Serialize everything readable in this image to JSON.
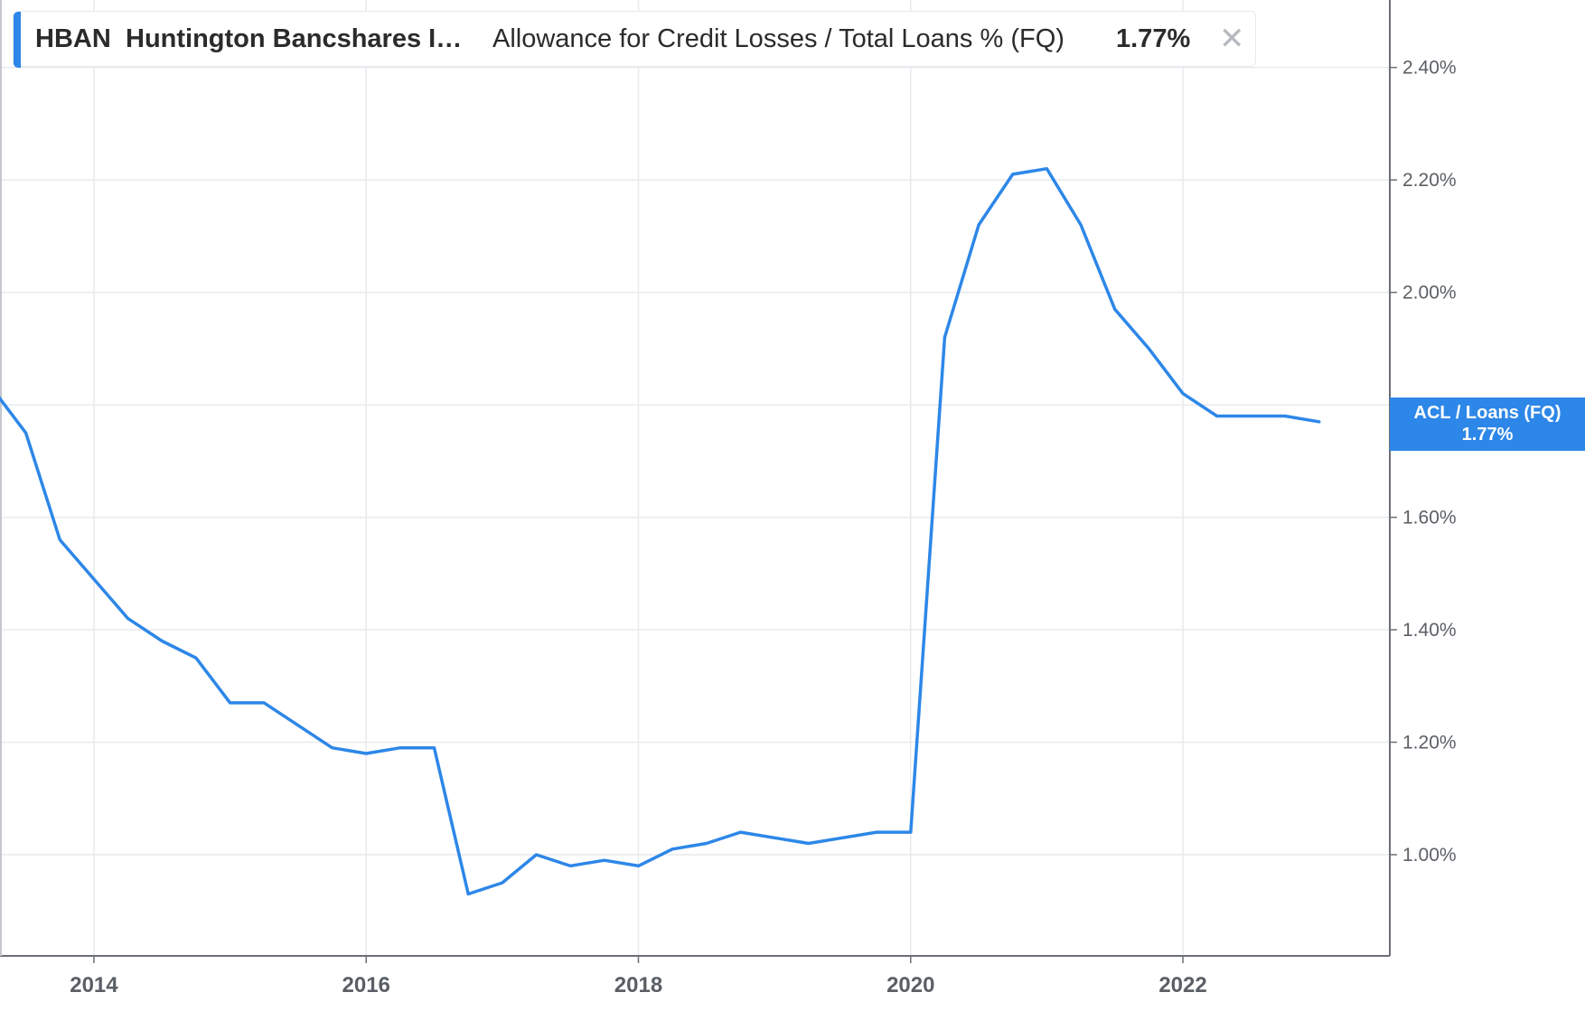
{
  "legend": {
    "ticker": "HBAN",
    "company": "Huntington Bancshares I…",
    "metric": "Allowance for Credit Losses / Total Loans % (FQ)",
    "value": "1.77%",
    "close_icon": "close-icon"
  },
  "badge": {
    "name": "ACL / Loans (FQ)",
    "value": "1.77%"
  },
  "colors": {
    "line": "#2d87e8",
    "grid": "#e8eaed",
    "axis": "#6b6f75"
  },
  "chart_data": {
    "type": "line",
    "title": "",
    "xlabel": "",
    "ylabel": "",
    "grid": true,
    "y_axis_side": "right",
    "xlim": [
      2013.31,
      2023.52
    ],
    "ylim": [
      0.82,
      2.52
    ],
    "x_ticks": [
      2014,
      2016,
      2018,
      2020,
      2022
    ],
    "x_tick_labels": [
      "2014",
      "2016",
      "2018",
      "2020",
      "2022"
    ],
    "y_ticks": [
      1.0,
      1.2,
      1.4,
      1.6,
      1.8,
      2.0,
      2.2,
      2.4
    ],
    "y_tick_labels": [
      "1.00%",
      "1.20%",
      "1.40%",
      "1.60%",
      "",
      "2.00%",
      "2.20%",
      "2.40%"
    ],
    "series": [
      {
        "name": "ACL / Loans (FQ)",
        "x": [
          2013.25,
          2013.5,
          2013.75,
          2014.0,
          2014.25,
          2014.5,
          2014.75,
          2015.0,
          2015.25,
          2015.5,
          2015.75,
          2016.0,
          2016.25,
          2016.5,
          2016.75,
          2017.0,
          2017.25,
          2017.5,
          2017.75,
          2018.0,
          2018.25,
          2018.5,
          2018.75,
          2019.0,
          2019.25,
          2019.5,
          2019.75,
          2020.0,
          2020.25,
          2020.5,
          2020.75,
          2021.0,
          2021.25,
          2021.5,
          2021.75,
          2022.0,
          2022.25,
          2022.5,
          2022.75,
          2023.0
        ],
        "values": [
          1.83,
          1.75,
          1.56,
          1.49,
          1.42,
          1.38,
          1.35,
          1.27,
          1.27,
          1.23,
          1.19,
          1.18,
          1.19,
          1.19,
          0.93,
          0.95,
          1.0,
          0.98,
          0.99,
          0.98,
          1.01,
          1.02,
          1.04,
          1.03,
          1.02,
          1.03,
          1.04,
          1.04,
          1.92,
          2.12,
          2.21,
          2.22,
          2.12,
          1.97,
          1.9,
          1.82,
          1.78,
          1.78,
          1.78,
          1.77
        ]
      }
    ]
  }
}
